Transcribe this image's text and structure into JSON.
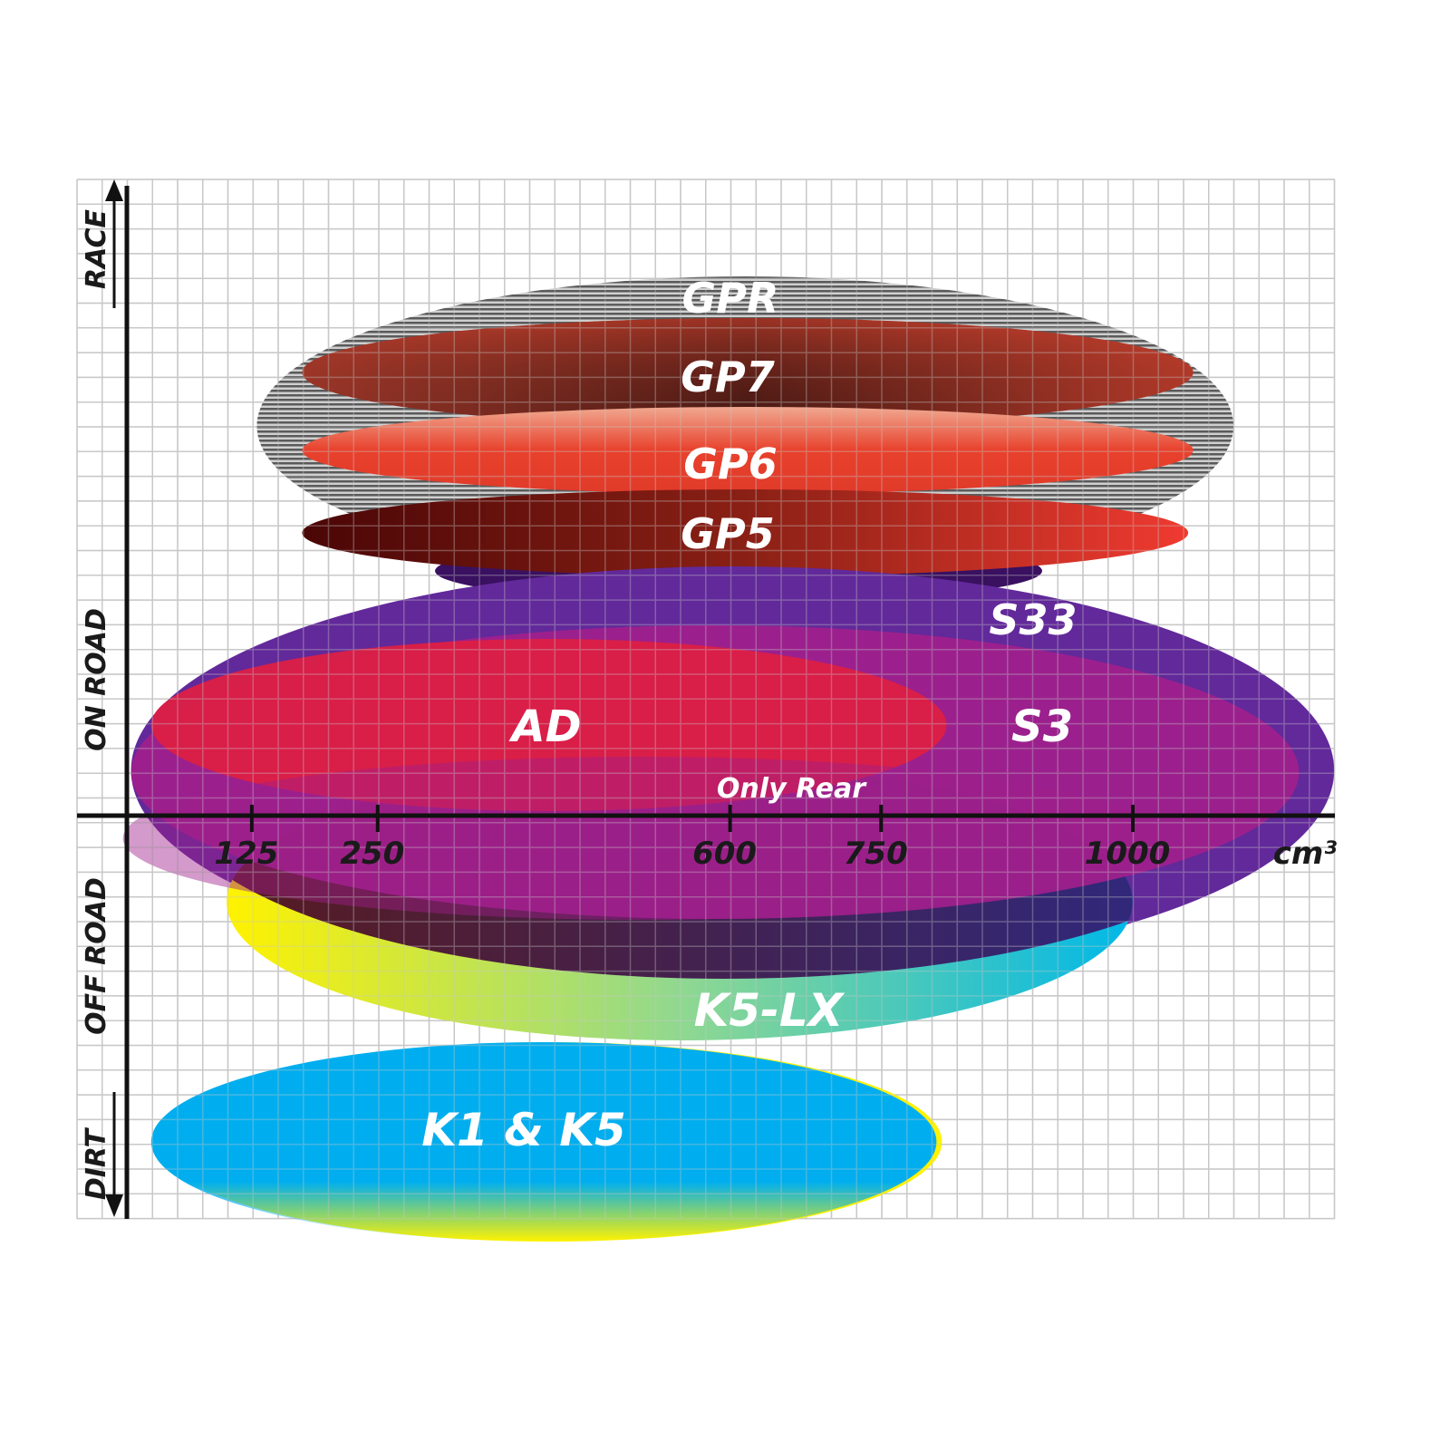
{
  "chart_data": {
    "type": "positioning-ellipses",
    "xlabel": "cm³",
    "x_ticks": [
      125,
      250,
      600,
      750,
      1000
    ],
    "y_categories_top_to_bottom": [
      "RACE",
      "ON ROAD",
      "OFF ROAD",
      "DIRT"
    ],
    "grid": true,
    "series": [
      {
        "name": "GPR",
        "cc_range": [
          130,
          1100
        ],
        "segment": "RACE",
        "color": "#8a8a8a"
      },
      {
        "name": "GP7",
        "cc_range": [
          175,
          1060
        ],
        "segment": "RACE",
        "color": "#b83a2a"
      },
      {
        "name": "GP6",
        "cc_range": [
          175,
          1060
        ],
        "segment": "RACE",
        "color": "#e8412c"
      },
      {
        "name": "GP5",
        "cc_range": [
          175,
          1055
        ],
        "segment": "RACE",
        "color": "#7a0f10"
      },
      {
        "name": "S33",
        "cc_range": [
          5,
          1200
        ],
        "segment": "ON ROAD",
        "color": "#62299a"
      },
      {
        "name": "S3",
        "cc_range": [
          5,
          1165
        ],
        "segment": "ON ROAD",
        "color": "#a0208c"
      },
      {
        "name": "AD",
        "cc_range": [
          25,
          815
        ],
        "segment": "ON ROAD",
        "color": "#dc1f45"
      },
      {
        "name": "K5-LX",
        "note": "Only Rear",
        "cc_range": [
          100,
          1000
        ],
        "segment": "OFF ROAD",
        "color": "#18c0d8"
      },
      {
        "name": "K1 & K5",
        "cc_range": [
          25,
          805
        ],
        "segment": "DIRT",
        "color": "#00aeef"
      }
    ]
  }
}
